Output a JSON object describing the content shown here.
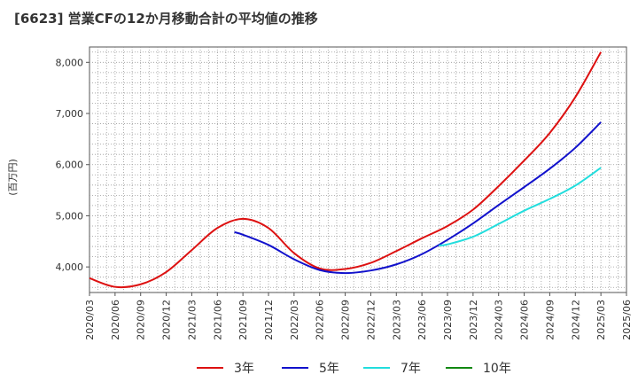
{
  "chart_data": {
    "type": "line",
    "title": "[6623]  営業CFの12か月移動合計の平均値の推移",
    "ylabel": "(百万円)",
    "xlabel": "",
    "ylim": [
      3500,
      8300
    ],
    "yticks": [
      4000,
      5000,
      6000,
      7000,
      8000
    ],
    "ytick_labels": [
      "4,000",
      "5,000",
      "6,000",
      "7,000",
      "8,000"
    ],
    "x_ticks": [
      "2020/03",
      "2020/06",
      "2020/09",
      "2020/12",
      "2021/03",
      "2021/06",
      "2021/09",
      "2021/12",
      "2022/03",
      "2022/06",
      "2022/09",
      "2022/12",
      "2023/03",
      "2023/06",
      "2023/09",
      "2023/12",
      "2024/03",
      "2024/06",
      "2024/09",
      "2024/12",
      "2025/03",
      "2025/06"
    ],
    "grid": true,
    "legend_position": "bottom",
    "series": [
      {
        "name": "3年",
        "color": "#dd1111",
        "x": [
          "2020/03",
          "2020/06",
          "2020/09",
          "2020/12",
          "2021/03",
          "2021/06",
          "2021/09",
          "2021/12",
          "2022/03",
          "2022/06",
          "2022/09",
          "2022/12",
          "2023/03",
          "2023/06",
          "2023/09",
          "2023/12",
          "2024/03",
          "2024/06",
          "2024/09",
          "2024/12",
          "2025/03"
        ],
        "values": [
          3780,
          3610,
          3660,
          3900,
          4330,
          4760,
          4940,
          4760,
          4270,
          3970,
          3960,
          4080,
          4310,
          4560,
          4800,
          5120,
          5580,
          6080,
          6620,
          7320,
          8200
        ]
      },
      {
        "name": "5年",
        "color": "#1111cc",
        "x": [
          "2021/08",
          "2021/09",
          "2021/12",
          "2022/03",
          "2022/06",
          "2022/09",
          "2022/12",
          "2023/03",
          "2023/06",
          "2023/09",
          "2023/12",
          "2024/03",
          "2024/06",
          "2024/09",
          "2024/12",
          "2025/03"
        ],
        "values": [
          4680,
          4630,
          4430,
          4150,
          3940,
          3880,
          3930,
          4050,
          4250,
          4530,
          4850,
          5210,
          5560,
          5920,
          6330,
          6830
        ]
      },
      {
        "name": "7年",
        "color": "#22dddd",
        "x": [
          "2023/08",
          "2023/09",
          "2023/12",
          "2024/03",
          "2024/06",
          "2024/09",
          "2024/12",
          "2025/03"
        ],
        "values": [
          4420,
          4440,
          4590,
          4840,
          5100,
          5330,
          5590,
          5940
        ]
      },
      {
        "name": "10年",
        "color": "#118811",
        "x": [],
        "values": []
      }
    ]
  }
}
